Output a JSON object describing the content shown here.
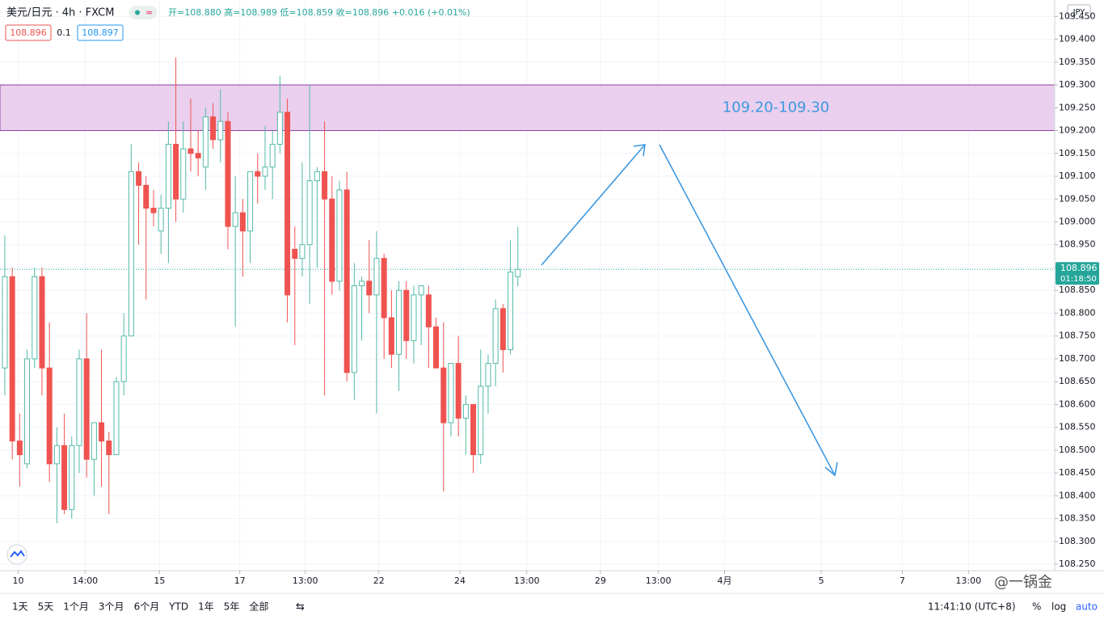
{
  "chart_data": {
    "type": "candlestick",
    "title": "美元/日元 · 4h · FXCM",
    "ohlc_legend": "开=108.880 高=108.989 低=108.859 收=108.896 +0.016 (+0.01%)",
    "bid": "108.896",
    "spread": "0.1",
    "ask": "108.897",
    "currency": "JPY",
    "countdown": "01:18:50",
    "up_color": "#53b9a8",
    "down_color": "#ef5350",
    "open": [
      108.68,
      108.88,
      108.52,
      108.47,
      108.7,
      108.88,
      108.68,
      108.47,
      108.51,
      108.37,
      108.51,
      108.7,
      108.48,
      108.56,
      108.52,
      108.49,
      108.65,
      108.75,
      109.11,
      109.08,
      109.03,
      108.98,
      109.03,
      109.17,
      109.05,
      109.16,
      109.15,
      109.12,
      109.23,
      109.18,
      109.22,
      108.99,
      109.02,
      108.98,
      109.11,
      109.1,
      109.12,
      109.17,
      109.24,
      108.94,
      108.92,
      108.95,
      109.09,
      109.11,
      109.05,
      108.87,
      109.07,
      108.67,
      108.86,
      108.87,
      108.84,
      108.92,
      108.79,
      108.71,
      108.85,
      108.74,
      108.84,
      108.84,
      108.77,
      108.68,
      108.56,
      108.69,
      108.57,
      108.6,
      108.49,
      108.64,
      108.69,
      108.81,
      108.72,
      108.88
    ],
    "high": [
      108.97,
      108.9,
      108.58,
      108.72,
      108.9,
      108.9,
      108.78,
      108.55,
      108.58,
      108.53,
      108.72,
      108.8,
      108.56,
      108.72,
      108.54,
      108.66,
      108.8,
      109.17,
      109.13,
      109.1,
      109.07,
      109.06,
      109.22,
      109.36,
      109.22,
      109.27,
      109.2,
      109.25,
      109.26,
      109.29,
      109.24,
      109.1,
      109.05,
      109.11,
      109.15,
      109.21,
      109.2,
      109.32,
      109.27,
      108.99,
      109.13,
      109.3,
      109.12,
      109.22,
      109.1,
      109.09,
      109.11,
      108.91,
      108.88,
      108.96,
      108.98,
      108.93,
      108.85,
      108.87,
      108.87,
      108.86,
      108.86,
      108.86,
      108.79,
      108.78,
      108.69,
      108.75,
      108.62,
      108.6,
      108.72,
      108.71,
      108.83,
      108.82,
      108.96,
      108.989
    ],
    "low": [
      108.62,
      108.48,
      108.42,
      108.46,
      108.68,
      108.62,
      108.43,
      108.34,
      108.36,
      108.35,
      108.45,
      108.44,
      108.4,
      108.42,
      108.36,
      108.49,
      108.62,
      108.75,
      108.95,
      108.83,
      108.99,
      108.93,
      108.91,
      109.0,
      109.02,
      109.11,
      109.1,
      109.07,
      109.16,
      109.13,
      108.94,
      108.77,
      108.88,
      108.91,
      109.04,
      109.07,
      109.05,
      109.15,
      108.78,
      108.73,
      108.88,
      108.82,
      108.9,
      108.62,
      108.84,
      108.85,
      108.65,
      108.61,
      108.74,
      108.8,
      108.58,
      108.7,
      108.68,
      108.63,
      108.7,
      108.69,
      108.73,
      108.68,
      108.68,
      108.41,
      108.53,
      108.53,
      108.49,
      108.45,
      108.47,
      108.58,
      108.64,
      108.67,
      108.71,
      108.859
    ],
    "close": [
      108.88,
      108.52,
      108.49,
      108.7,
      108.88,
      108.68,
      108.47,
      108.51,
      108.37,
      108.51,
      108.7,
      108.48,
      108.56,
      108.52,
      108.49,
      108.65,
      108.75,
      109.11,
      109.08,
      109.03,
      109.02,
      109.03,
      109.17,
      109.05,
      109.16,
      109.15,
      109.14,
      109.23,
      109.18,
      109.22,
      108.99,
      109.02,
      108.98,
      109.11,
      109.1,
      109.12,
      109.17,
      109.24,
      108.84,
      108.92,
      108.95,
      109.09,
      109.11,
      109.05,
      108.87,
      109.07,
      108.67,
      108.86,
      108.87,
      108.84,
      108.92,
      108.79,
      108.71,
      108.85,
      108.74,
      108.84,
      108.86,
      108.77,
      108.68,
      108.56,
      108.69,
      108.57,
      108.6,
      108.49,
      108.64,
      108.69,
      108.81,
      108.72,
      108.89,
      108.896
    ],
    "last_price": 108.896,
    "zone": {
      "low": 109.2,
      "high": 109.3,
      "label": "109.20-109.30",
      "color": "#ead0ee",
      "border": "#8e3fa0",
      "label_color": "#3d98e0"
    },
    "xlim": [
      -0.65,
      141.2
    ],
    "xticks": [
      {
        "value": 1.8,
        "label": "10"
      },
      {
        "value": 10.8,
        "label": "14:00"
      },
      {
        "value": 20.8,
        "label": "15"
      },
      {
        "value": 31.6,
        "label": "17"
      },
      {
        "value": 40.4,
        "label": "13:00"
      },
      {
        "value": 50.3,
        "label": "22"
      },
      {
        "value": 61.2,
        "label": "24"
      },
      {
        "value": 70.2,
        "label": "13:00"
      },
      {
        "value": 80.1,
        "label": "29"
      },
      {
        "value": 87.9,
        "label": "13:00"
      },
      {
        "value": 96.8,
        "label": "4月"
      },
      {
        "value": 109.8,
        "label": "5"
      },
      {
        "value": 120.7,
        "label": "7"
      },
      {
        "value": 129.6,
        "label": "13:00"
      }
    ],
    "ylim": [
      108.236,
      109.486
    ],
    "yticks": [
      {
        "value": 108.25,
        "label": "108.250"
      },
      {
        "value": 108.3,
        "label": "108.300"
      },
      {
        "value": 108.35,
        "label": "108.350"
      },
      {
        "value": 108.4,
        "label": "108.400"
      },
      {
        "value": 108.45,
        "label": "108.450"
      },
      {
        "value": 108.5,
        "label": "108.500"
      },
      {
        "value": 108.55,
        "label": "108.550"
      },
      {
        "value": 108.6,
        "label": "108.600"
      },
      {
        "value": 108.65,
        "label": "108.650"
      },
      {
        "value": 108.7,
        "label": "108.700"
      },
      {
        "value": 108.75,
        "label": "108.750"
      },
      {
        "value": 108.8,
        "label": "108.800"
      },
      {
        "value": 108.85,
        "label": "108.850"
      },
      {
        "value": 108.9,
        "label": "108.900"
      },
      {
        "value": 108.95,
        "label": "108.950"
      },
      {
        "value": 109.0,
        "label": "109.000"
      },
      {
        "value": 109.05,
        "label": "109.050"
      },
      {
        "value": 109.1,
        "label": "109.100"
      },
      {
        "value": 109.15,
        "label": "109.150"
      },
      {
        "value": 109.2,
        "label": "109.200"
      },
      {
        "value": 109.25,
        "label": "109.250"
      },
      {
        "value": 109.3,
        "label": "109.300"
      },
      {
        "value": 109.35,
        "label": "109.350"
      },
      {
        "value": 109.4,
        "label": "109.400"
      },
      {
        "value": 109.45,
        "label": "109.450"
      }
    ],
    "grid": true,
    "ranges": [
      "1天",
      "5天",
      "1个月",
      "3个月",
      "6个月",
      "YTD",
      "1年",
      "5年",
      "全部"
    ],
    "clock": "11:41:10 (UTC+8)",
    "scale_options": [
      "%",
      "log",
      "auto"
    ],
    "watermark": "@一锅金"
  }
}
